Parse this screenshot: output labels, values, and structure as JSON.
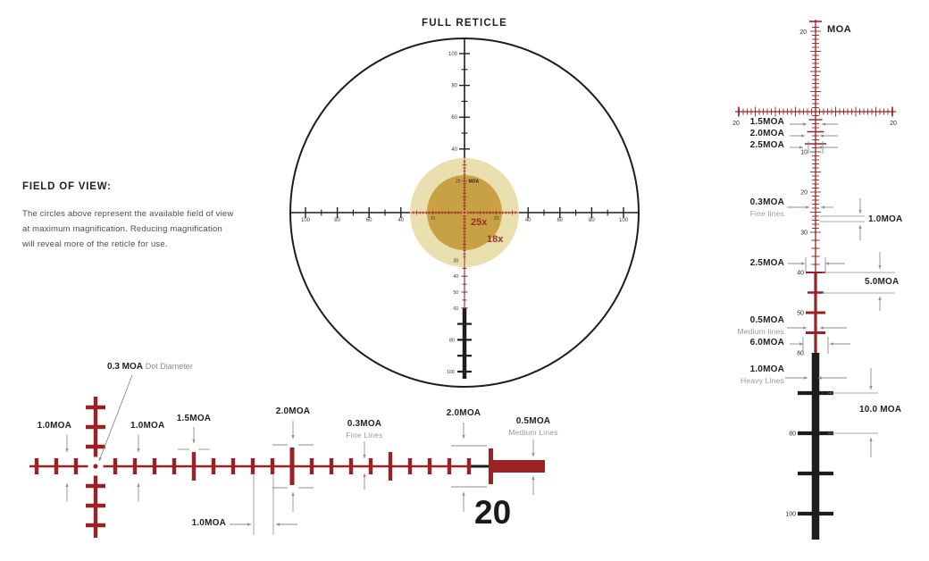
{
  "colors": {
    "reticle_red": "#9b2125",
    "reticle_black": "#1d1d1b",
    "text_dark": "#231f20",
    "anno_gray": "#8d8d8d",
    "tick_label": "#3c3c3c",
    "fov_inner": "#c9a145",
    "fov_outer": "#e9dfaf",
    "mag_text": "#993122"
  },
  "header": {
    "title": "FULL RETICLE"
  },
  "field_of_view": {
    "heading": "FIELD OF VIEW:",
    "lines": [
      "The circles above represent the available field of view",
      "at maximum magnification. Reducing magnification",
      "will reveal more of the reticle for use."
    ]
  },
  "full_reticle": {
    "mag_inner_label": "25x",
    "mag_outer_label": "18x",
    "center_value": "20",
    "center_unit": "MOA",
    "axis_20_label": "20",
    "h_left_labels": [
      100,
      80,
      60,
      40
    ],
    "h_right_labels": [
      40,
      60,
      80,
      100
    ],
    "v_top_labels": [
      100,
      80,
      60,
      40
    ],
    "v_bottom_labels": [
      30,
      40,
      50,
      60
    ],
    "v_bottom_heavy_labels": [
      80,
      100
    ]
  },
  "center_detail": {
    "dot_label_bold": "0.3 MOA",
    "dot_label_rest": "Dot Diameter",
    "annos": {
      "left_1moa": "1.0MOA",
      "mid_1moa": "1.0MOA",
      "t15": "1.5MOA",
      "t20a": "2.0MOA",
      "fine_bold": "0.3MOA",
      "fine_sub": "Fine Lines",
      "t20b": "2.0MOA",
      "medium_bold": "0.5MOA",
      "medium_sub": "Medium Lines",
      "bottom_1moa": "1.0MOA"
    },
    "big_number": "20"
  },
  "elevation_detail": {
    "top_value": "20",
    "unit": "MOA",
    "h_end_labels": [
      "20",
      "20"
    ],
    "axis_labels": [
      10,
      20,
      30,
      40,
      50,
      60,
      80,
      100
    ],
    "left_annos": [
      {
        "bold": "1.5MOA",
        "sub": ""
      },
      {
        "bold": "2.0MOA",
        "sub": ""
      },
      {
        "bold": "2.5MOA",
        "sub": ""
      },
      {
        "bold": "0.3MOA",
        "sub": "Fine lines"
      },
      {
        "bold": "2.5MOA",
        "sub": ""
      },
      {
        "bold": "0.5MOA",
        "sub": "Medium lines"
      },
      {
        "bold": "6.0MOA",
        "sub": ""
      },
      {
        "bold": "1.0MOA",
        "sub": "Heavy Lines"
      }
    ],
    "right_annos": [
      "1.0MOA",
      "5.0MOA",
      "10.0 MOA"
    ]
  }
}
